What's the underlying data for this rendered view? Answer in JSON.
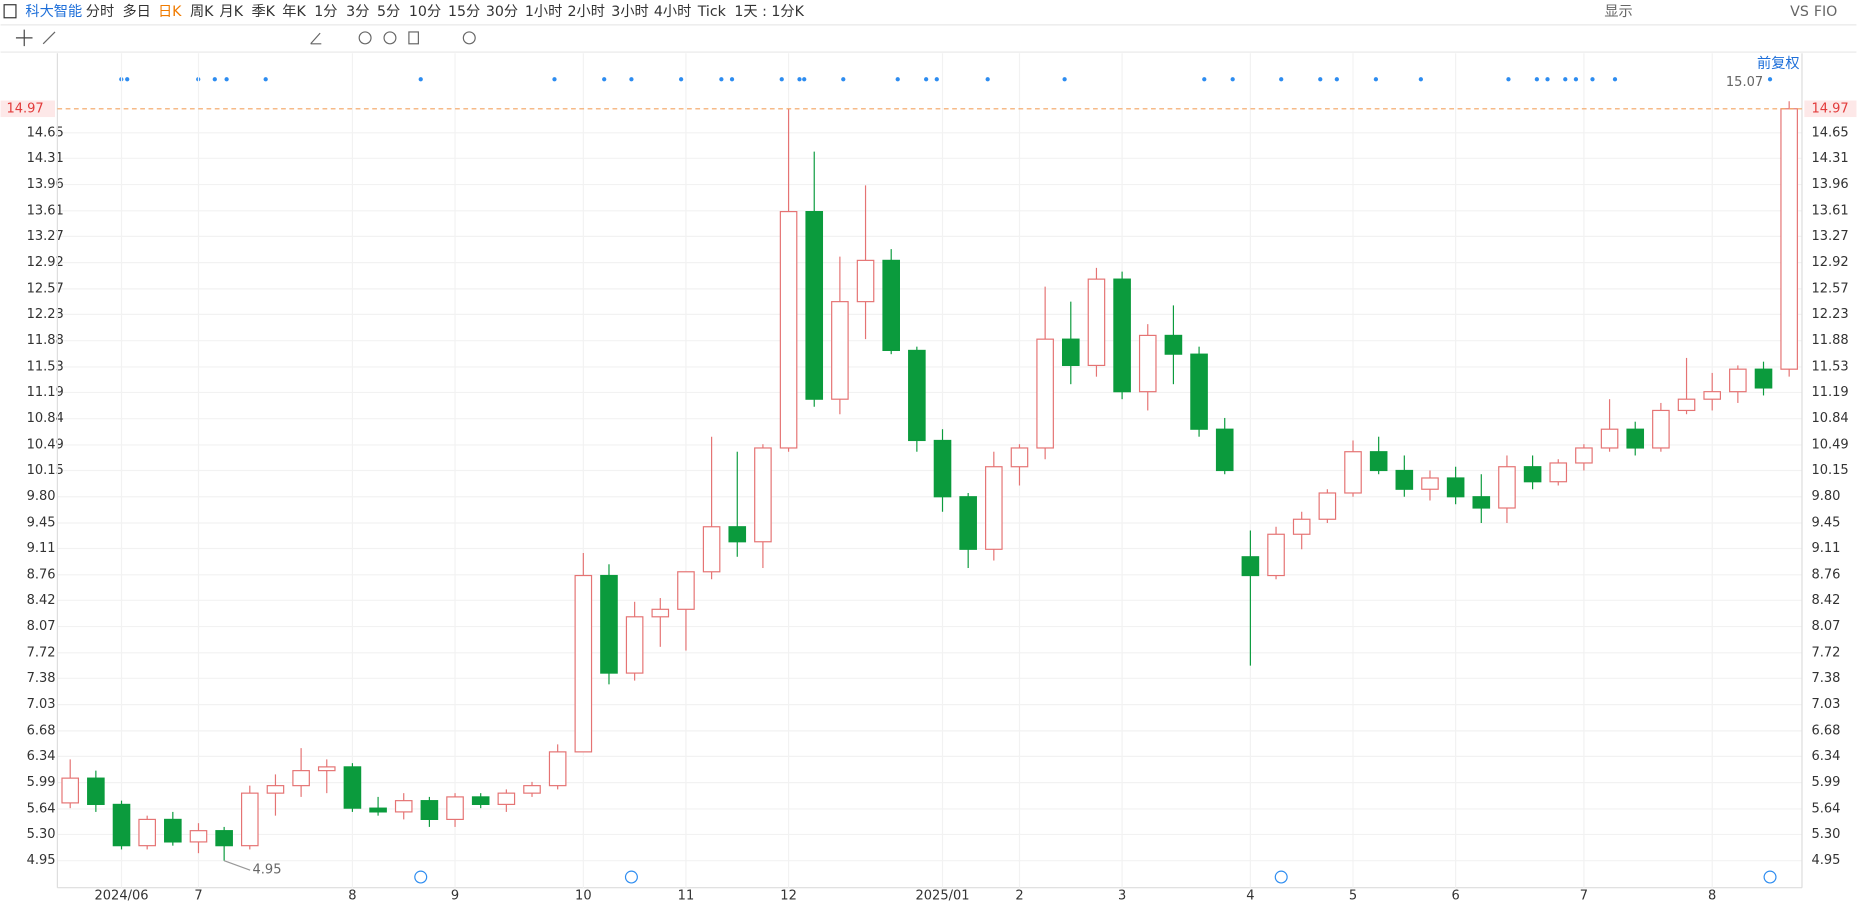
{
  "toolbar": {
    "stock": "科大智能",
    "periods": [
      "分时",
      "多日",
      "日K",
      "周K",
      "月K",
      "季K",
      "年K",
      "1分",
      "3分",
      "5分",
      "10分",
      "15分",
      "30分",
      "1小时",
      "2小时",
      "3小时",
      "4小时",
      "Tick",
      "1天 : 1分K"
    ],
    "active": 2,
    "right": [
      "显示",
      "VS",
      "FIO"
    ],
    "adjust": "前复权"
  },
  "chart_data": {
    "type": "candlestick",
    "categories": [
      null,
      null,
      "2024/06",
      null,
      null,
      "7",
      null,
      null,
      null,
      null,
      null,
      "8",
      null,
      null,
      null,
      "9",
      null,
      null,
      null,
      null,
      "10",
      null,
      null,
      null,
      "11",
      null,
      null,
      null,
      "12",
      null,
      null,
      null,
      null,
      null,
      "2025/01",
      null,
      null,
      "2",
      null,
      null,
      null,
      "3",
      null,
      null,
      null,
      null,
      "4",
      null,
      null,
      null,
      "5",
      null,
      null,
      null,
      "6",
      null,
      null,
      null,
      null,
      "7",
      null,
      null,
      null,
      null,
      "8",
      null,
      null,
      null
    ],
    "candles": [
      [
        5.72,
        6.3,
        5.65,
        6.05
      ],
      [
        6.05,
        6.15,
        5.6,
        5.7
      ],
      [
        5.7,
        5.75,
        5.1,
        5.15
      ],
      [
        5.15,
        5.55,
        5.1,
        5.5
      ],
      [
        5.5,
        5.6,
        5.15,
        5.2
      ],
      [
        5.2,
        5.45,
        5.05,
        5.35
      ],
      [
        5.35,
        5.4,
        4.95,
        5.15
      ],
      [
        5.15,
        5.95,
        5.1,
        5.85
      ],
      [
        5.85,
        6.1,
        5.55,
        5.95
      ],
      [
        5.95,
        6.45,
        5.8,
        6.15
      ],
      [
        6.15,
        6.3,
        5.85,
        6.2
      ],
      [
        6.2,
        6.25,
        5.6,
        5.65
      ],
      [
        5.65,
        5.8,
        5.55,
        5.6
      ],
      [
        5.6,
        5.85,
        5.5,
        5.75
      ],
      [
        5.75,
        5.8,
        5.4,
        5.5
      ],
      [
        5.5,
        5.85,
        5.4,
        5.8
      ],
      [
        5.8,
        5.85,
        5.65,
        5.7
      ],
      [
        5.7,
        5.9,
        5.6,
        5.85
      ],
      [
        5.85,
        6.0,
        5.8,
        5.95
      ],
      [
        5.95,
        6.5,
        5.9,
        6.4
      ],
      [
        6.4,
        9.05,
        6.4,
        8.75
      ],
      [
        8.75,
        8.9,
        7.3,
        7.45
      ],
      [
        7.45,
        8.4,
        7.35,
        8.2
      ],
      [
        8.2,
        8.45,
        7.8,
        8.3
      ],
      [
        8.3,
        8.8,
        7.75,
        8.8
      ],
      [
        8.8,
        10.6,
        8.7,
        9.4
      ],
      [
        9.4,
        10.4,
        9.0,
        9.2
      ],
      [
        9.2,
        10.5,
        8.85,
        10.45
      ],
      [
        10.45,
        14.97,
        10.4,
        13.6
      ],
      [
        13.6,
        14.4,
        11.0,
        11.1
      ],
      [
        11.1,
        13.0,
        10.9,
        12.4
      ],
      [
        12.4,
        13.95,
        11.9,
        12.95
      ],
      [
        12.95,
        13.1,
        11.7,
        11.75
      ],
      [
        11.75,
        11.8,
        10.4,
        10.55
      ],
      [
        10.55,
        10.7,
        9.6,
        9.8
      ],
      [
        9.8,
        9.85,
        8.85,
        9.1
      ],
      [
        9.1,
        10.4,
        8.95,
        10.2
      ],
      [
        10.2,
        10.5,
        9.95,
        10.45
      ],
      [
        10.45,
        12.6,
        10.3,
        11.9
      ],
      [
        11.9,
        12.4,
        11.3,
        11.55
      ],
      [
        11.55,
        12.85,
        11.4,
        12.7
      ],
      [
        12.7,
        12.8,
        11.1,
        11.2
      ],
      [
        11.2,
        12.1,
        10.95,
        11.95
      ],
      [
        11.95,
        12.35,
        11.3,
        11.7
      ],
      [
        11.7,
        11.8,
        10.6,
        10.7
      ],
      [
        10.7,
        10.85,
        10.1,
        10.15
      ],
      [
        9.0,
        9.35,
        7.55,
        8.75
      ],
      [
        8.75,
        9.4,
        8.7,
        9.3
      ],
      [
        9.3,
        9.6,
        9.1,
        9.5
      ],
      [
        9.5,
        9.9,
        9.45,
        9.85
      ],
      [
        9.85,
        10.55,
        9.8,
        10.4
      ],
      [
        10.4,
        10.6,
        10.1,
        10.15
      ],
      [
        10.15,
        10.35,
        9.8,
        9.9
      ],
      [
        9.9,
        10.15,
        9.75,
        10.05
      ],
      [
        10.05,
        10.2,
        9.7,
        9.8
      ],
      [
        9.8,
        10.1,
        9.45,
        9.65
      ],
      [
        9.65,
        10.35,
        9.45,
        10.2
      ],
      [
        10.2,
        10.35,
        9.9,
        10.0
      ],
      [
        10.0,
        10.3,
        9.95,
        10.25
      ],
      [
        10.25,
        10.5,
        10.15,
        10.45
      ],
      [
        10.45,
        11.1,
        10.4,
        10.7
      ],
      [
        10.7,
        10.8,
        10.35,
        10.45
      ],
      [
        10.45,
        11.05,
        10.4,
        10.95
      ],
      [
        10.95,
        11.65,
        10.9,
        11.1
      ],
      [
        11.1,
        11.45,
        10.95,
        11.2
      ],
      [
        11.2,
        11.55,
        11.05,
        11.5
      ],
      [
        11.5,
        11.6,
        11.15,
        11.25
      ],
      [
        11.5,
        15.07,
        11.4,
        14.97
      ]
    ],
    "up_color": "#e57373",
    "down_color": "#0b9b3d",
    "ylim": [
      4.59,
      15.71
    ],
    "yticks": [
      4.95,
      {
        "value": 5.3,
        "label": "5.30"
      },
      5.64,
      5.99,
      6.34,
      6.68,
      7.03,
      7.38,
      7.72,
      8.07,
      8.42,
      8.76,
      9.11,
      9.45,
      {
        "value": 9.8,
        "label": "9.80"
      },
      10.15,
      10.49,
      10.84,
      11.19,
      11.53,
      11.88,
      12.23,
      12.57,
      12.92,
      13.27,
      13.61,
      13.96,
      14.31,
      14.65
    ],
    "last_price": 14.97,
    "high_label": "chart_data.candles.67.1",
    "grid": true
  }
}
